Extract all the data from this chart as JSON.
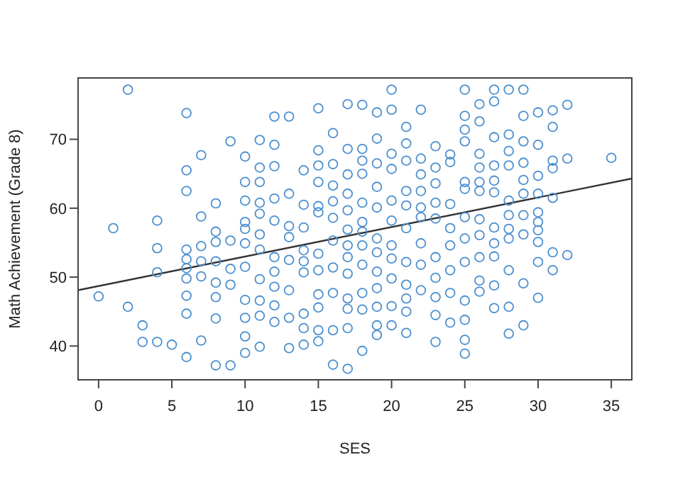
{
  "chart_data": {
    "type": "scatter",
    "xlabel": "SES",
    "ylabel": "Math Achievement (Grade 8)",
    "xlim": [
      -1.4,
      36.4
    ],
    "ylim": [
      35.1,
      78.9
    ],
    "xticks": [
      0,
      5,
      10,
      15,
      20,
      25,
      30,
      35
    ],
    "yticks": [
      40,
      50,
      60,
      70
    ],
    "series": [
      {
        "color": "#4a8fd0",
        "marker": "circle",
        "x": [
          0,
          1,
          2,
          2,
          3,
          3,
          4,
          4,
          4,
          4,
          5,
          6,
          6,
          6,
          6,
          6,
          6,
          6,
          6,
          6,
          6,
          7,
          7,
          7,
          7,
          7,
          7,
          8,
          8,
          8,
          8,
          8,
          8,
          8,
          8,
          9,
          9,
          9,
          9,
          9,
          10,
          10,
          10,
          10,
          10,
          10,
          10,
          10,
          10,
          10,
          10,
          11,
          11,
          11,
          11,
          11,
          11,
          11,
          11,
          11,
          11,
          11,
          12,
          12,
          12,
          12,
          12,
          12,
          12,
          12,
          12,
          12,
          13,
          13,
          13,
          13,
          13,
          13,
          13,
          13,
          14,
          14,
          14,
          14,
          14,
          14,
          14,
          14,
          14,
          15,
          15,
          15,
          15,
          15,
          15,
          15,
          15,
          15,
          15,
          15,
          15,
          16,
          16,
          16,
          16,
          16,
          16,
          16,
          16,
          16,
          16,
          17,
          17,
          17,
          17,
          17,
          17,
          17,
          17,
          17,
          17,
          17,
          17,
          17,
          18,
          18,
          18,
          18,
          18,
          18,
          18,
          18,
          18,
          18,
          18,
          18,
          19,
          19,
          19,
          19,
          19,
          19,
          19,
          19,
          19,
          19,
          19,
          19,
          20,
          20,
          20,
          20,
          20,
          20,
          20,
          20,
          20,
          20,
          20,
          21,
          21,
          21,
          21,
          21,
          21,
          21,
          21,
          21,
          21,
          21,
          22,
          22,
          22,
          22,
          22,
          22,
          22,
          22,
          22,
          23,
          23,
          23,
          23,
          23,
          23,
          23,
          23,
          23,
          23,
          24,
          24,
          24,
          24,
          24,
          24,
          24,
          24,
          25,
          25,
          25,
          25,
          25,
          25,
          25,
          25,
          25,
          25,
          25,
          25,
          25,
          26,
          26,
          26,
          26,
          26,
          26,
          26,
          26,
          26,
          26,
          26,
          27,
          27,
          27,
          27,
          27,
          27,
          27,
          27,
          27,
          27,
          27,
          28,
          28,
          28,
          28,
          28,
          28,
          28,
          28,
          28,
          28,
          28,
          29,
          29,
          29,
          29,
          29,
          29,
          29,
          29,
          29,
          29,
          30,
          30,
          30,
          30,
          30,
          30,
          30,
          30,
          30,
          30,
          31,
          31,
          31,
          31,
          31,
          31,
          31,
          32,
          32,
          32,
          35
        ],
        "values": [
          47.2,
          57.1,
          77.2,
          45.7,
          43.0,
          40.6,
          40.6,
          58.2,
          54.2,
          50.7,
          40.2,
          73.8,
          65.5,
          62.5,
          54.0,
          52.6,
          51.3,
          49.8,
          47.3,
          44.7,
          38.4,
          67.7,
          58.8,
          54.5,
          52.3,
          50.1,
          40.8,
          60.7,
          56.6,
          55.1,
          52.3,
          49.2,
          47.1,
          44.0,
          37.2,
          69.7,
          55.3,
          51.2,
          48.9,
          37.2,
          67.5,
          63.8,
          61.1,
          58.0,
          57.0,
          54.9,
          51.5,
          46.7,
          44.1,
          41.4,
          39.0,
          69.9,
          65.9,
          63.8,
          60.8,
          59.2,
          56.2,
          54.0,
          49.7,
          46.6,
          44.4,
          39.9,
          73.3,
          69.2,
          66.1,
          61.4,
          58.2,
          52.9,
          50.8,
          48.6,
          45.9,
          43.5,
          73.3,
          62.1,
          57.4,
          55.8,
          52.5,
          48.1,
          44.1,
          39.7,
          65.5,
          60.5,
          57.2,
          53.9,
          52.3,
          50.7,
          44.7,
          42.6,
          40.2,
          74.5,
          68.4,
          66.2,
          63.8,
          60.3,
          59.4,
          53.4,
          51.0,
          47.5,
          45.6,
          42.3,
          40.7,
          70.9,
          66.4,
          63.3,
          61.0,
          58.6,
          55.3,
          51.4,
          47.7,
          42.3,
          37.3,
          75.1,
          68.6,
          64.9,
          62.1,
          59.7,
          56.9,
          54.6,
          52.9,
          50.5,
          46.9,
          45.4,
          42.6,
          36.7,
          75.0,
          68.6,
          66.9,
          65.0,
          60.8,
          58.0,
          56.6,
          54.6,
          51.8,
          47.7,
          45.3,
          39.3,
          73.9,
          70.1,
          66.5,
          63.1,
          60.1,
          55.6,
          53.6,
          50.8,
          48.4,
          45.7,
          43.0,
          41.6,
          77.2,
          74.3,
          67.9,
          65.7,
          61.1,
          58.2,
          54.6,
          52.7,
          49.8,
          45.8,
          43.0,
          71.8,
          69.4,
          66.9,
          62.5,
          60.4,
          57.1,
          52.2,
          48.9,
          46.9,
          45.0,
          41.9,
          74.3,
          67.2,
          64.9,
          62.5,
          60.1,
          58.7,
          54.9,
          51.8,
          48.1,
          69.0,
          65.9,
          63.6,
          60.8,
          58.5,
          52.9,
          49.9,
          47.1,
          44.5,
          40.6,
          67.8,
          66.7,
          60.6,
          57.1,
          54.6,
          51.0,
          47.7,
          43.4,
          77.2,
          73.4,
          71.4,
          69.7,
          63.8,
          62.8,
          58.7,
          55.6,
          52.2,
          46.6,
          43.8,
          40.9,
          38.9,
          75.1,
          72.6,
          67.9,
          65.9,
          63.8,
          62.5,
          58.4,
          56.1,
          52.9,
          49.5,
          47.9,
          77.2,
          75.5,
          70.3,
          66.2,
          64.0,
          62.3,
          57.2,
          54.9,
          53.0,
          48.8,
          45.5,
          77.2,
          70.7,
          68.3,
          66.2,
          61.1,
          59.0,
          57.0,
          55.6,
          51.0,
          45.7,
          41.8,
          77.2,
          73.4,
          69.7,
          66.6,
          64.1,
          62.1,
          59.0,
          56.2,
          49.1,
          43.0,
          73.9,
          69.2,
          64.7,
          62.1,
          59.4,
          58.0,
          56.8,
          55.1,
          52.2,
          47.0,
          74.2,
          71.8,
          66.9,
          65.8,
          61.5,
          53.6,
          51.0,
          75.0,
          67.2,
          53.2,
          67.3
        ]
      },
      {
        "type": "line",
        "color": "#333333",
        "x": [
          -1.4,
          36.4
        ],
        "values": [
          48.1,
          64.3
        ]
      }
    ]
  }
}
